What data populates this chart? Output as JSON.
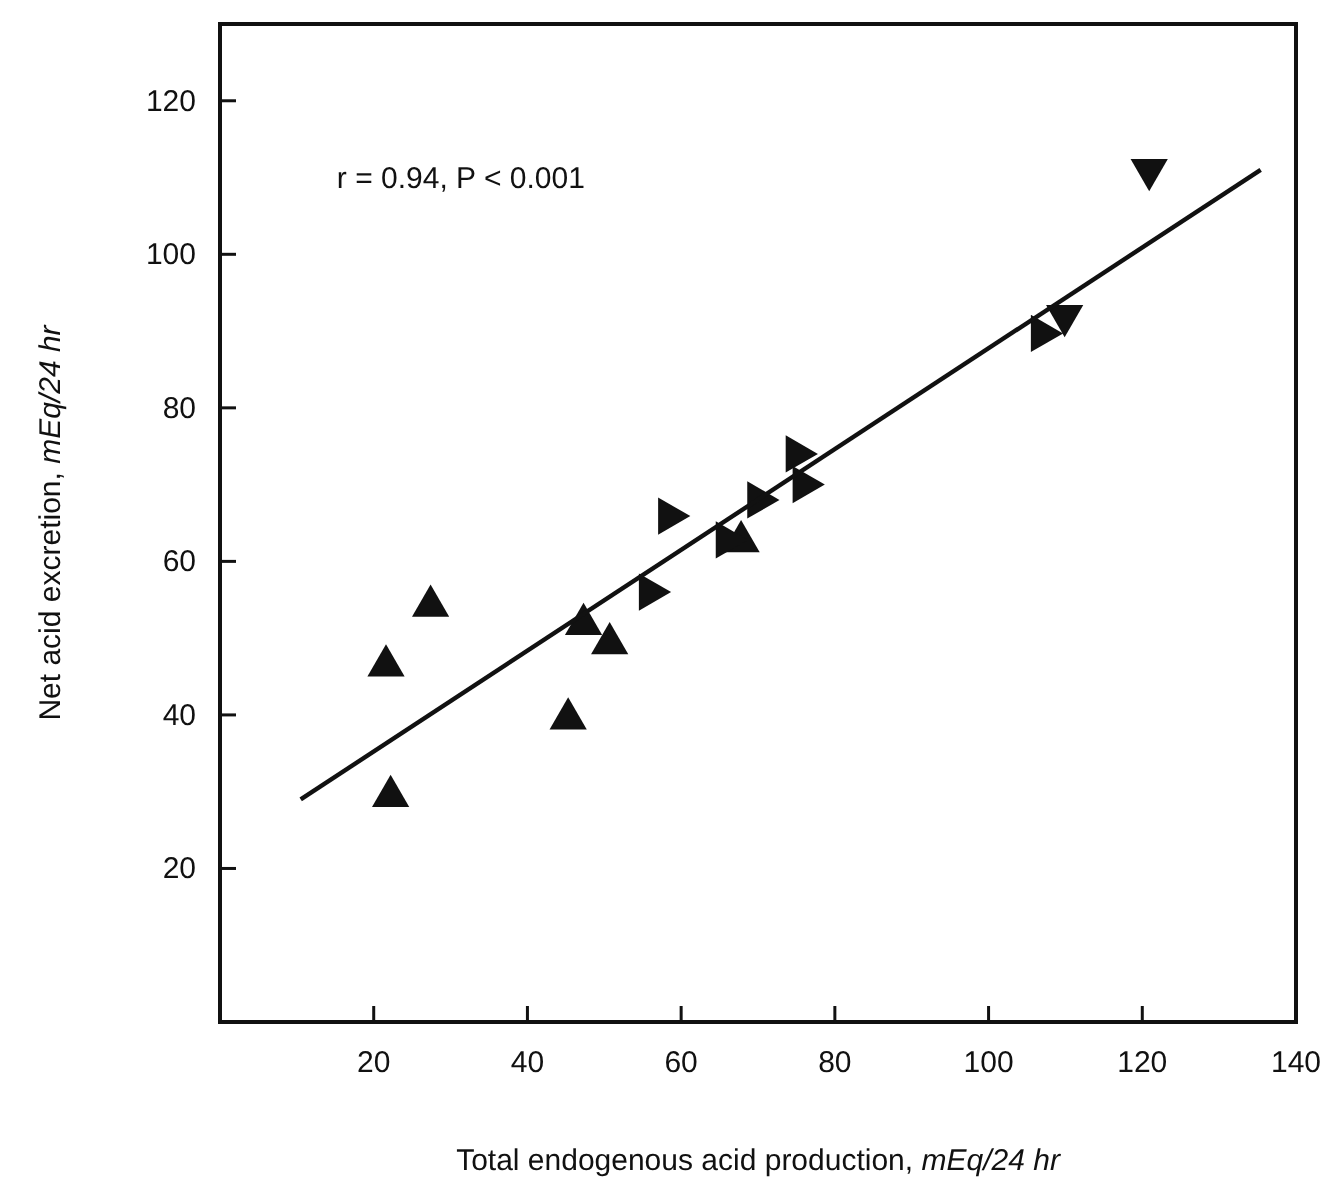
{
  "chart_data": {
    "type": "scatter",
    "xlabel": "Total endogenous acid production, mEq/24 hr",
    "ylabel": "Net acid excretion, mEq/24 hr",
    "xlim": [
      0,
      140
    ],
    "ylim": [
      0,
      130
    ],
    "xticks": [
      20,
      40,
      60,
      80,
      100,
      120,
      140
    ],
    "yticks": [
      20,
      40,
      60,
      80,
      100,
      120
    ],
    "grid": false,
    "annotations": [
      "r = 0.94, P < 0.001"
    ],
    "series": [
      {
        "color": "#111111",
        "marker": "triangle",
        "x": [
          21.6,
          22.2,
          27.4,
          45.3,
          47.3,
          50.7,
          67.8
        ],
        "values": [
          46.4,
          29.4,
          54.2,
          39.5,
          51.8,
          49.3,
          62.6
        ]
      },
      {
        "color": "#111111",
        "marker": "triangle",
        "x": [
          55.9,
          58.4,
          65.9,
          70,
          75,
          75.9,
          106.9
        ],
        "values": [
          56,
          65.9,
          62.8,
          68,
          74,
          70,
          89.7
        ]
      },
      {
        "color": "#111111",
        "marker": "triangle",
        "x": [
          109.9,
          120.9
        ],
        "values": [
          92,
          111
        ]
      },
      {
        "type": "line",
        "color": "#111111",
        "x": [
          10.5,
          135.4
        ],
        "values": [
          29,
          111
        ]
      }
    ]
  }
}
